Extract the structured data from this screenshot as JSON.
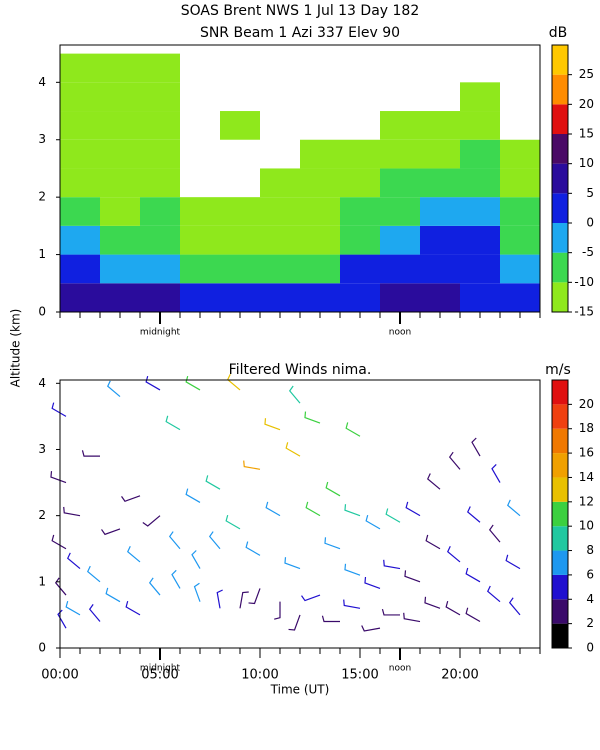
{
  "chart_data": [
    {
      "type": "heatmap",
      "title": "SOAS Brent NWS    1 Jul 13 Day 182",
      "subtitle": "SNR Beam 1 Azi 337 Elev 90",
      "y_label": "Altitude (km)",
      "colorbar_label": "dB",
      "xlim": [
        0,
        24
      ],
      "ylim": [
        0,
        4.65
      ],
      "yticks": [
        0,
        1,
        2,
        3,
        4
      ],
      "xticks_minor": [
        0,
        1,
        2,
        3,
        4,
        5,
        6,
        7,
        8,
        9,
        10,
        11,
        12,
        13,
        14,
        15,
        16,
        17,
        18,
        19,
        20,
        21,
        22,
        23,
        24
      ],
      "annotations": [
        {
          "x": 5,
          "label": "midnight"
        },
        {
          "x": 17,
          "label": "noon"
        }
      ],
      "clim": [
        -15,
        30
      ],
      "cticks": [
        -15,
        -10,
        -5,
        0,
        5,
        10,
        15,
        20,
        25
      ],
      "colors": [
        "#8fe81c",
        "#3cd850",
        "#1ea8f0",
        "#1020e0",
        "#2a0c9c",
        "#4a0a66",
        "#e01010",
        "#ff8c00",
        "#ffc800"
      ],
      "time_edges": [
        0,
        2,
        4,
        6,
        8,
        10,
        12,
        14,
        16,
        18,
        20,
        22,
        24
      ],
      "alt_edges": [
        0,
        0.5,
        1,
        1.5,
        2,
        2.5,
        3,
        3.5,
        4,
        4.5
      ],
      "values": [
        [
          7,
          1,
          -4,
          -6,
          -11,
          -11,
          -11,
          -11,
          -12
        ],
        [
          5,
          -4,
          -8,
          -11,
          -11,
          -12,
          -12,
          -12,
          -13
        ],
        [
          9,
          -3,
          -6,
          -9,
          -11,
          -11,
          -11,
          -11,
          -12
        ],
        [
          2,
          -8,
          -11,
          -12,
          null,
          null,
          null,
          null,
          null
        ],
        [
          1,
          -9,
          -12,
          -13,
          null,
          null,
          -13,
          null,
          null
        ],
        [
          4,
          -9,
          -11,
          -12,
          -13,
          null,
          null,
          null,
          null
        ],
        [
          1,
          -8,
          -11,
          -12,
          -12,
          -13,
          null,
          null,
          null
        ],
        [
          4,
          1,
          -6,
          -9,
          -11,
          -12,
          null,
          null,
          null
        ],
        [
          9,
          4,
          -1,
          -6,
          -9,
          -11,
          -12,
          null,
          null
        ],
        [
          8,
          4,
          1,
          -4,
          -8,
          -11,
          -12,
          null,
          null
        ],
        [
          4,
          1,
          0,
          -5,
          -6,
          -10,
          -11,
          -13,
          null
        ],
        [
          1,
          -3,
          -6,
          -9,
          -11,
          -13,
          null,
          null,
          null
        ]
      ]
    },
    {
      "type": "barbs",
      "title": "Filtered Winds nima.",
      "x_label": "Time (UT)",
      "colorbar_label": "m/s",
      "xlim": [
        0,
        24
      ],
      "ylim": [
        0,
        4.05
      ],
      "yticks": [
        0,
        1,
        2,
        3,
        4
      ],
      "xticks": [
        {
          "value": 0,
          "label": "00:00"
        },
        {
          "value": 5,
          "label": "05:00"
        },
        {
          "value": 10,
          "label": "10:00"
        },
        {
          "value": 15,
          "label": "15:00"
        },
        {
          "value": 20,
          "label": "20:00"
        }
      ],
      "xticks_minor": [
        0,
        1,
        2,
        3,
        4,
        5,
        6,
        7,
        8,
        9,
        10,
        11,
        12,
        13,
        14,
        15,
        16,
        17,
        18,
        19,
        20,
        21,
        22,
        23,
        24
      ],
      "annotations": [
        {
          "x": 5,
          "label": "midnight"
        },
        {
          "x": 17,
          "label": "noon"
        }
      ],
      "clim": [
        0,
        22
      ],
      "cticks": [
        0,
        2,
        4,
        6,
        8,
        10,
        12,
        14,
        16,
        18,
        20
      ],
      "colors": [
        "#000000",
        "#3a0a6a",
        "#2010d0",
        "#1e98f0",
        "#20c8a0",
        "#3cd040",
        "#e8c000",
        "#f0a000",
        "#f07800",
        "#f04010",
        "#e01010"
      ],
      "barbs": [
        {
          "time": 0.3,
          "alt": 0.3,
          "speed": 4,
          "dir": 330
        },
        {
          "time": 0.3,
          "alt": 0.8,
          "speed": 3,
          "dir": 320
        },
        {
          "time": 0.3,
          "alt": 1.5,
          "speed": 3,
          "dir": 300
        },
        {
          "time": 0.3,
          "alt": 2.5,
          "speed": 3,
          "dir": 290
        },
        {
          "time": 0.3,
          "alt": 3.5,
          "speed": 5,
          "dir": 300
        },
        {
          "time": 1,
          "alt": 0.5,
          "speed": 6,
          "dir": 300
        },
        {
          "time": 1,
          "alt": 1.2,
          "speed": 5,
          "dir": 310
        },
        {
          "time": 1,
          "alt": 2.0,
          "speed": 3,
          "dir": 280
        },
        {
          "time": 2,
          "alt": 0.4,
          "speed": 5,
          "dir": 320
        },
        {
          "time": 2,
          "alt": 1.0,
          "speed": 6,
          "dir": 310
        },
        {
          "time": 2,
          "alt": 2.9,
          "speed": 2,
          "dir": 270
        },
        {
          "time": 3,
          "alt": 0.7,
          "speed": 6,
          "dir": 300
        },
        {
          "time": 3,
          "alt": 1.8,
          "speed": 2,
          "dir": 250
        },
        {
          "time": 3,
          "alt": 3.8,
          "speed": 6,
          "dir": 310
        },
        {
          "time": 4,
          "alt": 0.5,
          "speed": 5,
          "dir": 300
        },
        {
          "time": 4,
          "alt": 1.3,
          "speed": 7,
          "dir": 310
        },
        {
          "time": 4,
          "alt": 2.3,
          "speed": 3,
          "dir": 250
        },
        {
          "time": 5,
          "alt": 0.8,
          "speed": 6,
          "dir": 320
        },
        {
          "time": 5,
          "alt": 2.0,
          "speed": 2,
          "dir": 230
        },
        {
          "time": 5,
          "alt": 3.9,
          "speed": 5,
          "dir": 300
        },
        {
          "time": 6,
          "alt": 0.9,
          "speed": 7,
          "dir": 330
        },
        {
          "time": 6,
          "alt": 1.5,
          "speed": 7,
          "dir": 320
        },
        {
          "time": 6,
          "alt": 3.3,
          "speed": 9,
          "dir": 300
        },
        {
          "time": 7,
          "alt": 0.7,
          "speed": 6,
          "dir": 340
        },
        {
          "time": 7,
          "alt": 1.2,
          "speed": 6,
          "dir": 330
        },
        {
          "time": 7,
          "alt": 2.2,
          "speed": 7,
          "dir": 300
        },
        {
          "time": 7,
          "alt": 3.9,
          "speed": 11,
          "dir": 300
        },
        {
          "time": 8,
          "alt": 0.6,
          "speed": 4,
          "dir": 350
        },
        {
          "time": 8,
          "alt": 1.5,
          "speed": 7,
          "dir": 320
        },
        {
          "time": 8,
          "alt": 2.4,
          "speed": 8,
          "dir": 300
        },
        {
          "time": 9,
          "alt": 0.6,
          "speed": 3,
          "dir": 10
        },
        {
          "time": 9,
          "alt": 1.8,
          "speed": 8,
          "dir": 300
        },
        {
          "time": 9,
          "alt": 3.9,
          "speed": 13,
          "dir": 310
        },
        {
          "time": 10,
          "alt": 0.9,
          "speed": 3,
          "dir": 200
        },
        {
          "time": 10,
          "alt": 1.4,
          "speed": 6,
          "dir": 300
        },
        {
          "time": 10,
          "alt": 2.7,
          "speed": 14,
          "dir": 280
        },
        {
          "time": 11,
          "alt": 0.7,
          "speed": 2,
          "dir": 180
        },
        {
          "time": 11,
          "alt": 2.0,
          "speed": 7,
          "dir": 300
        },
        {
          "time": 11,
          "alt": 3.3,
          "speed": 12,
          "dir": 290
        },
        {
          "time": 12,
          "alt": 0.5,
          "speed": 3,
          "dir": 200
        },
        {
          "time": 12,
          "alt": 1.2,
          "speed": 6,
          "dir": 290
        },
        {
          "time": 12,
          "alt": 2.9,
          "speed": 13,
          "dir": 300
        },
        {
          "time": 12,
          "alt": 3.7,
          "speed": 8,
          "dir": 320
        },
        {
          "time": 13,
          "alt": 0.8,
          "speed": 4,
          "dir": 250
        },
        {
          "time": 13,
          "alt": 2.0,
          "speed": 10,
          "dir": 300
        },
        {
          "time": 13,
          "alt": 3.4,
          "speed": 11,
          "dir": 290
        },
        {
          "time": 14,
          "alt": 0.4,
          "speed": 3,
          "dir": 270
        },
        {
          "time": 14,
          "alt": 1.5,
          "speed": 7,
          "dir": 290
        },
        {
          "time": 14,
          "alt": 2.3,
          "speed": 10,
          "dir": 300
        },
        {
          "time": 15,
          "alt": 0.6,
          "speed": 4,
          "dir": 280
        },
        {
          "time": 15,
          "alt": 1.1,
          "speed": 6,
          "dir": 290
        },
        {
          "time": 15,
          "alt": 2.0,
          "speed": 9,
          "dir": 290
        },
        {
          "time": 15,
          "alt": 3.2,
          "speed": 10,
          "dir": 300
        },
        {
          "time": 16,
          "alt": 0.3,
          "speed": 3,
          "dir": 260
        },
        {
          "time": 16,
          "alt": 0.9,
          "speed": 5,
          "dir": 290
        },
        {
          "time": 16,
          "alt": 1.8,
          "speed": 7,
          "dir": 300
        },
        {
          "time": 17,
          "alt": 0.5,
          "speed": 3,
          "dir": 270
        },
        {
          "time": 17,
          "alt": 1.2,
          "speed": 4,
          "dir": 280
        },
        {
          "time": 17,
          "alt": 1.9,
          "speed": 8,
          "dir": 300
        },
        {
          "time": 18,
          "alt": 0.4,
          "speed": 3,
          "dir": 280
        },
        {
          "time": 18,
          "alt": 1.0,
          "speed": 3,
          "dir": 290
        },
        {
          "time": 18,
          "alt": 2.0,
          "speed": 4,
          "dir": 300
        },
        {
          "time": 19,
          "alt": 0.6,
          "speed": 3,
          "dir": 290
        },
        {
          "time": 19,
          "alt": 1.5,
          "speed": 3,
          "dir": 300
        },
        {
          "time": 19,
          "alt": 2.4,
          "speed": 3,
          "dir": 310
        },
        {
          "time": 20,
          "alt": 0.5,
          "speed": 3,
          "dir": 300
        },
        {
          "time": 20,
          "alt": 1.3,
          "speed": 4,
          "dir": 310
        },
        {
          "time": 20,
          "alt": 2.7,
          "speed": 3,
          "dir": 320
        },
        {
          "time": 21,
          "alt": 0.4,
          "speed": 3,
          "dir": 300
        },
        {
          "time": 21,
          "alt": 1.0,
          "speed": 4,
          "dir": 300
        },
        {
          "time": 21,
          "alt": 1.9,
          "speed": 5,
          "dir": 310
        },
        {
          "time": 21,
          "alt": 2.9,
          "speed": 3,
          "dir": 330
        },
        {
          "time": 22,
          "alt": 0.7,
          "speed": 4,
          "dir": 310
        },
        {
          "time": 22,
          "alt": 1.6,
          "speed": 3,
          "dir": 320
        },
        {
          "time": 22,
          "alt": 2.5,
          "speed": 4,
          "dir": 330
        },
        {
          "time": 23,
          "alt": 0.5,
          "speed": 4,
          "dir": 320
        },
        {
          "time": 23,
          "alt": 1.2,
          "speed": 5,
          "dir": 300
        },
        {
          "time": 23,
          "alt": 2.0,
          "speed": 7,
          "dir": 310
        }
      ]
    }
  ]
}
